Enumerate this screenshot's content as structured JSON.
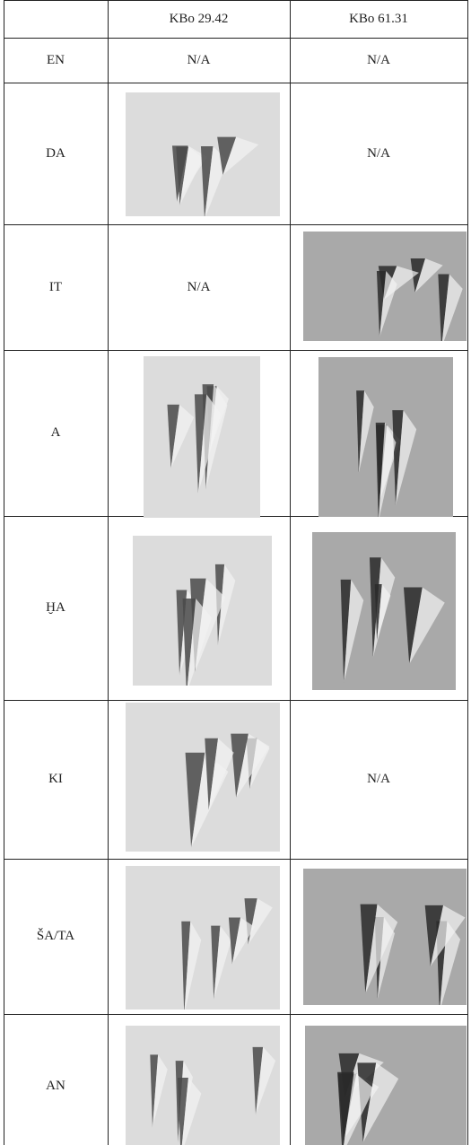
{
  "header": {
    "columns": [
      "KBo 29.42",
      "KBo 61.31"
    ]
  },
  "rows": [
    {
      "sign": "EN",
      "kbo_29_42": "N/A",
      "kbo_61_31": "N/A"
    },
    {
      "sign": "DA",
      "kbo_61_31": "N/A"
    },
    {
      "sign": "IT",
      "kbo_29_42": "N/A"
    },
    {
      "sign": "A"
    },
    {
      "sign": "ḪA"
    },
    {
      "sign": "KI",
      "kbo_61_31": "N/A"
    },
    {
      "sign": "ŠA/TA"
    },
    {
      "sign": "AN"
    }
  ]
}
